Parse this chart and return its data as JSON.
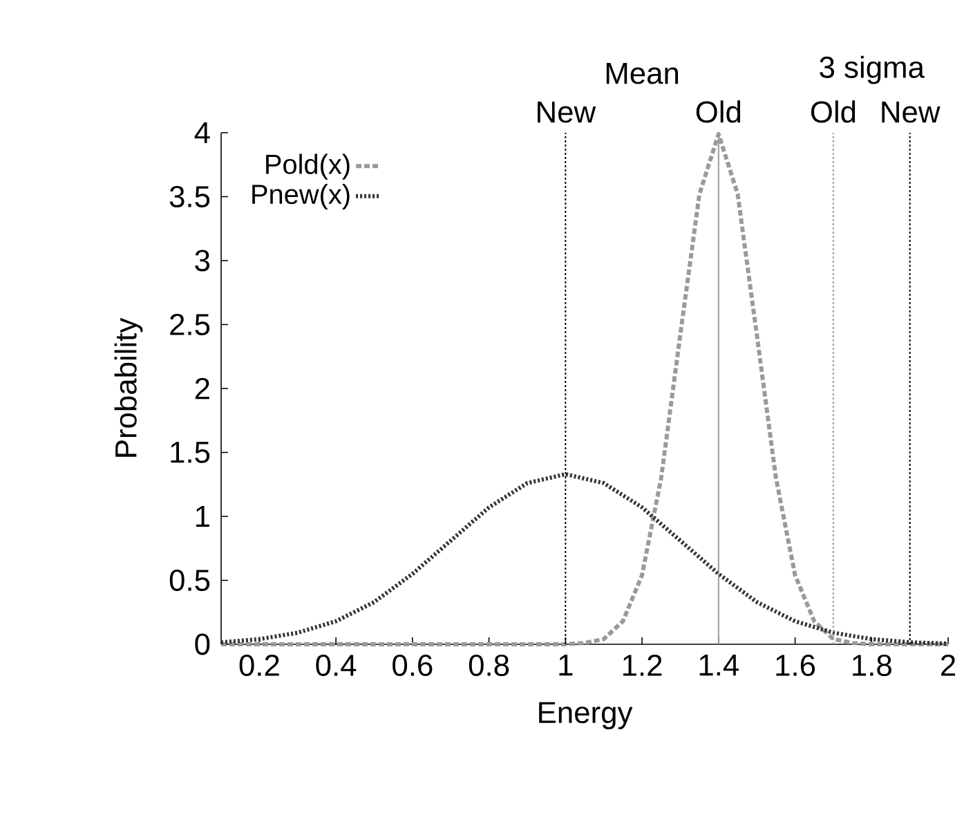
{
  "chart_data": {
    "type": "line",
    "xlabel": "Energy",
    "ylabel": "Probability",
    "xlim": [
      0.1,
      2
    ],
    "ylim": [
      0,
      4
    ],
    "xticks": [
      0.2,
      0.4,
      0.6,
      0.8,
      1,
      1.2,
      1.4,
      1.6,
      1.8,
      2
    ],
    "yticks": [
      0,
      0.5,
      1,
      1.5,
      2,
      2.5,
      3,
      3.5,
      4
    ],
    "legend": "top left",
    "grid": false,
    "marker": "none",
    "series": [
      {
        "name": "Pold(x)",
        "color": "#9a9a9a",
        "line_style": "dashed",
        "x": [
          0.1,
          0.5,
          0.9,
          1.0,
          1.05,
          1.1,
          1.15,
          1.2,
          1.25,
          1.3,
          1.35,
          1.4,
          1.45,
          1.5,
          1.55,
          1.6,
          1.65,
          1.7,
          1.75,
          1.8,
          1.9,
          2.0
        ],
        "values": [
          0,
          0,
          0,
          0,
          0.01,
          0.04,
          0.18,
          0.54,
          1.3,
          2.42,
          3.52,
          3.99,
          3.52,
          2.42,
          1.3,
          0.54,
          0.18,
          0.04,
          0.01,
          0,
          0,
          0
        ]
      },
      {
        "name": "Pnew(x)",
        "color": "#333333",
        "line_style": "dotted",
        "x": [
          0.1,
          0.2,
          0.3,
          0.4,
          0.5,
          0.6,
          0.7,
          0.8,
          0.9,
          1.0,
          1.1,
          1.2,
          1.3,
          1.4,
          1.5,
          1.6,
          1.7,
          1.8,
          1.9,
          2.0
        ],
        "values": [
          0.015,
          0.04,
          0.09,
          0.18,
          0.33,
          0.55,
          0.81,
          1.07,
          1.26,
          1.33,
          1.26,
          1.07,
          0.81,
          0.55,
          0.33,
          0.18,
          0.09,
          0.04,
          0.015,
          0.005
        ]
      }
    ],
    "ref_lines": [
      {
        "axis": "x",
        "value": 1,
        "label": "New",
        "color": "#000000",
        "line_style": "dotted"
      },
      {
        "axis": "x",
        "value": 1.4,
        "label": "Old",
        "color": "#9a9a9a",
        "line_style": "solid"
      },
      {
        "axis": "x",
        "value": 1.7,
        "label": "Old",
        "color": "#9a9a9a",
        "line_style": "dotted"
      },
      {
        "axis": "x",
        "value": 1.9,
        "label": "New",
        "color": "#000000",
        "line_style": "dotted"
      }
    ],
    "annotations": [
      "Mean",
      "3 sigma"
    ]
  }
}
